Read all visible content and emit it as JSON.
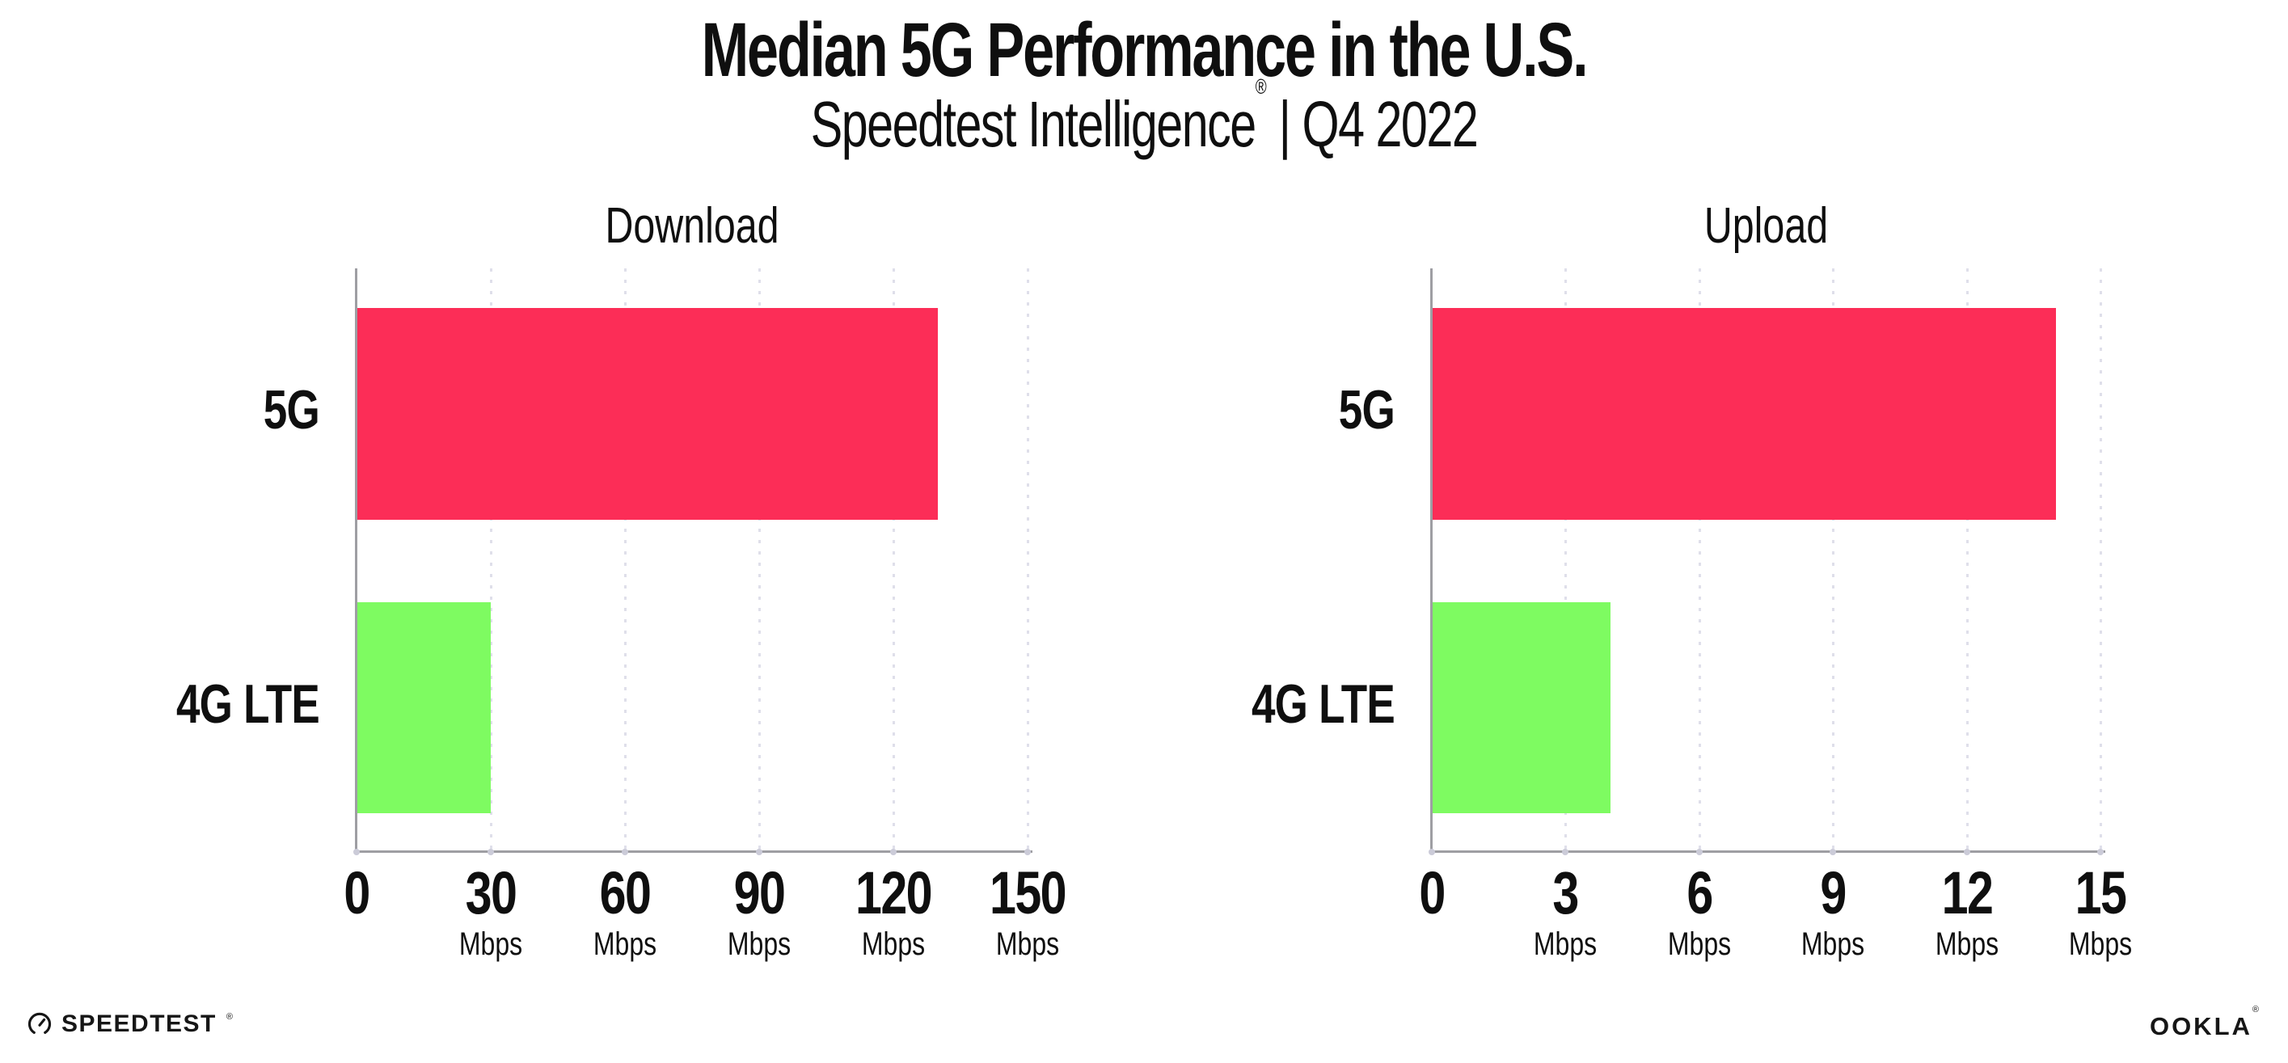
{
  "header": {
    "title": "Median 5G Performance in the U.S.",
    "subtitle_brand": "Speedtest Intelligence",
    "subtitle_mark": "®",
    "subtitle_suffix": " | Q4 2022"
  },
  "footer": {
    "speedtest_label": "SPEEDTEST",
    "speedtest_mark": "®",
    "ookla_label": "OOKLA",
    "ookla_mark": "®"
  },
  "colors": {
    "bar_5g": "#fc2d57",
    "bar_4g_lte": "#7efb61",
    "axis": "#9e9ea3",
    "gridline": "#dfdfea",
    "text": "#0f0f0f"
  },
  "chart_data": [
    {
      "type": "bar",
      "orientation": "horizontal",
      "title": "Download",
      "categories": [
        "5G",
        "4G LTE"
      ],
      "values": [
        130,
        30
      ],
      "unit": "Mbps",
      "xlim": [
        0,
        150
      ],
      "xticks": [
        0,
        30,
        60,
        90,
        120,
        150
      ],
      "bar_colors": [
        "#fc2d57",
        "#7efb61"
      ],
      "grid": "dotted-vertical-at-ticks",
      "legend": "none"
    },
    {
      "type": "bar",
      "orientation": "horizontal",
      "title": "Upload",
      "categories": [
        "5G",
        "4G LTE"
      ],
      "values": [
        14,
        4
      ],
      "unit": "Mbps",
      "xlim": [
        0,
        15
      ],
      "xticks": [
        0,
        3,
        6,
        9,
        12,
        15
      ],
      "bar_colors": [
        "#fc2d57",
        "#7efb61"
      ],
      "grid": "dotted-vertical-at-ticks",
      "legend": "none"
    }
  ]
}
